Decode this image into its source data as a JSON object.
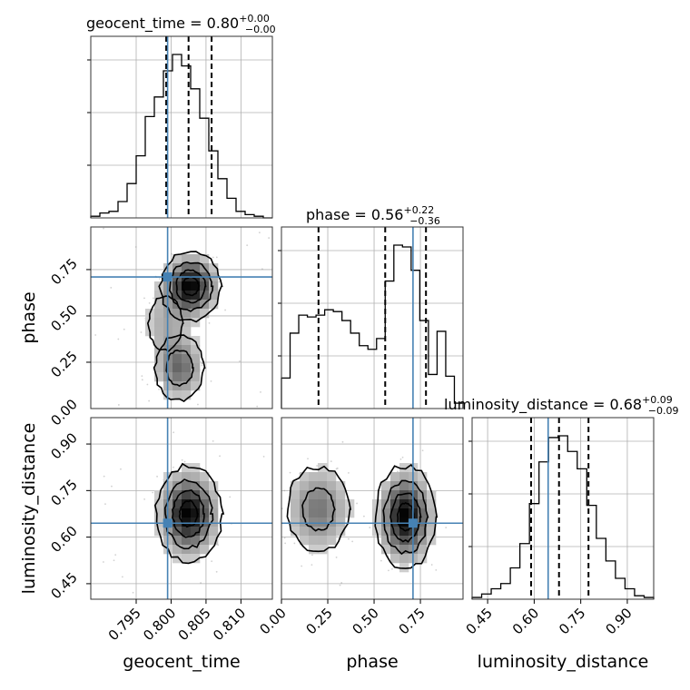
{
  "chart_data": {
    "type": "corner",
    "truths": {
      "geocent_time": 0.7995,
      "phase": 0.71,
      "luminosity_distance": 0.645
    },
    "truth_color": "#4682b4",
    "params": [
      {
        "name": "geocent_time",
        "title_name": "geocent_time",
        "median": "0.80",
        "plus": "+0.00",
        "minus": "−0.00",
        "range": [
          0.7885,
          0.8145
        ],
        "ticks": [
          0.795,
          0.8,
          0.805,
          0.81
        ],
        "tick_labels": [
          "0.795",
          "0.800",
          "0.805",
          "0.810"
        ],
        "quantiles": [
          0.7993,
          0.8025,
          0.8058
        ],
        "hist_values": [
          1,
          3,
          4,
          10,
          21,
          38,
          62,
          74,
          90,
          100,
          93,
          79,
          61,
          41,
          24,
          12,
          4,
          2,
          1,
          0
        ]
      },
      {
        "name": "phase",
        "title_name": "phase",
        "median": "0.56",
        "plus": "+0.22",
        "minus": "−0.36",
        "range": [
          0.0,
          0.98
        ],
        "ticks": [
          0.0,
          0.25,
          0.5,
          0.75
        ],
        "tick_labels": [
          "0.00",
          "0.25",
          "0.50",
          "0.75"
        ],
        "y_ticks": [
          0.25,
          0.5,
          0.75
        ],
        "y_tick_labels": [
          "0.25",
          "0.50",
          "0.75"
        ],
        "quantiles": [
          0.2,
          0.56,
          0.78
        ],
        "hist_values": [
          17,
          42,
          52,
          51,
          52,
          55,
          54,
          49,
          42,
          35,
          33,
          39,
          71,
          91,
          90,
          77,
          49,
          19,
          43,
          18,
          3
        ]
      },
      {
        "name": "luminosity_distance",
        "title_name": "luminosity_distance",
        "median": "0.68",
        "plus": "+0.09",
        "minus": "−0.09",
        "range": [
          0.4,
          0.985
        ],
        "ticks": [
          0.45,
          0.6,
          0.75,
          0.9
        ],
        "tick_labels": [
          "0.45",
          "0.60",
          "0.75",
          "0.90"
        ],
        "quantiles": [
          0.59,
          0.68,
          0.775
        ],
        "hist_values": [
          1,
          3,
          6,
          9,
          18,
          32,
          55,
          79,
          93,
          94,
          85,
          75,
          54,
          35,
          22,
          12,
          6,
          2,
          1
        ]
      }
    ],
    "density_2d": [
      {
        "x": "geocent_time",
        "y": "phase",
        "blobs": [
          {
            "cx": 0.8028,
            "cy": 0.66,
            "sx": 0.0021,
            "sy": 0.09,
            "w": 1.0
          },
          {
            "cx": 0.8012,
            "cy": 0.22,
            "sx": 0.002,
            "sy": 0.1,
            "w": 0.55
          },
          {
            "cx": 0.7992,
            "cy": 0.46,
            "sx": 0.002,
            "sy": 0.12,
            "w": 0.25
          }
        ]
      },
      {
        "x": "geocent_time",
        "y": "luminosity_distance",
        "blobs": [
          {
            "cx": 0.8025,
            "cy": 0.675,
            "sx": 0.0023,
            "sy": 0.075,
            "w": 1.0
          }
        ]
      },
      {
        "x": "phase",
        "y": "luminosity_distance",
        "blobs": [
          {
            "cx": 0.67,
            "cy": 0.665,
            "sx": 0.08,
            "sy": 0.08,
            "w": 1.0
          },
          {
            "cx": 0.2,
            "cy": 0.69,
            "sx": 0.1,
            "sy": 0.08,
            "w": 0.5
          }
        ]
      }
    ]
  }
}
